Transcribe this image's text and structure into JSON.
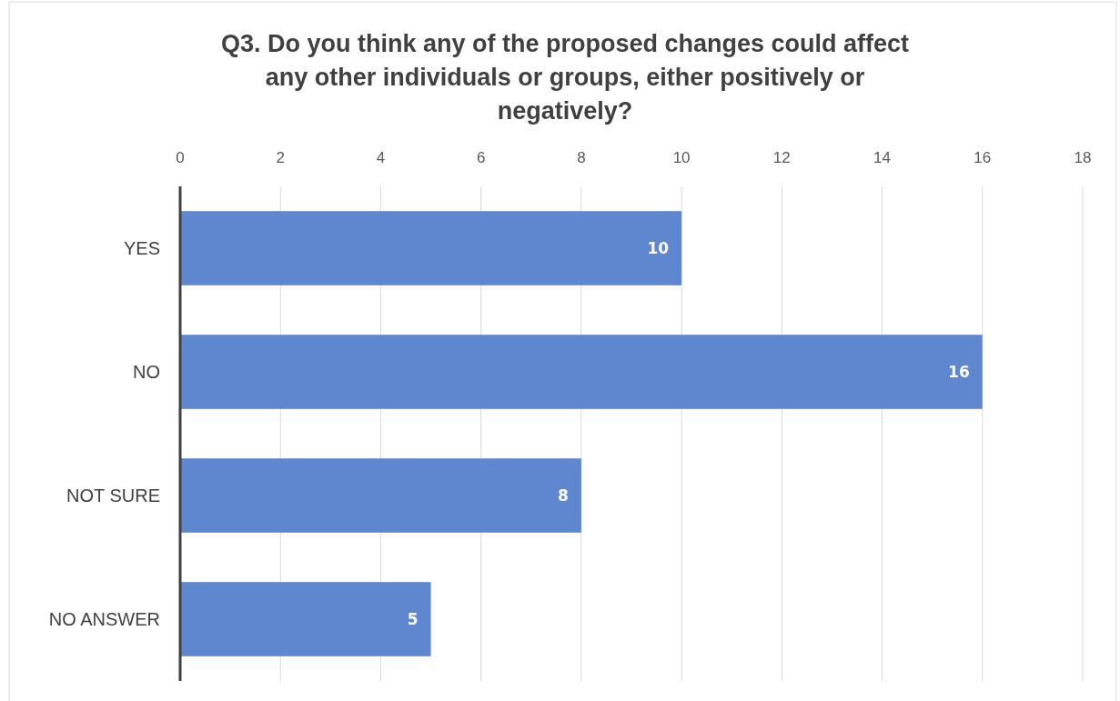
{
  "chart_data": {
    "type": "bar",
    "orientation": "horizontal",
    "title": "Q3. Do you think any of the proposed changes could affect any other individuals or groups, either positively or negatively?",
    "categories": [
      "YES",
      "NO",
      "NOT SURE",
      "NO ANSWER"
    ],
    "values": [
      10,
      16,
      8,
      5
    ],
    "color": "#5f87cf",
    "xlim": [
      0,
      18
    ],
    "xticks": [
      0,
      2,
      4,
      6,
      8,
      10,
      12,
      14,
      16,
      18
    ],
    "grid": "x",
    "data_labels": true
  }
}
